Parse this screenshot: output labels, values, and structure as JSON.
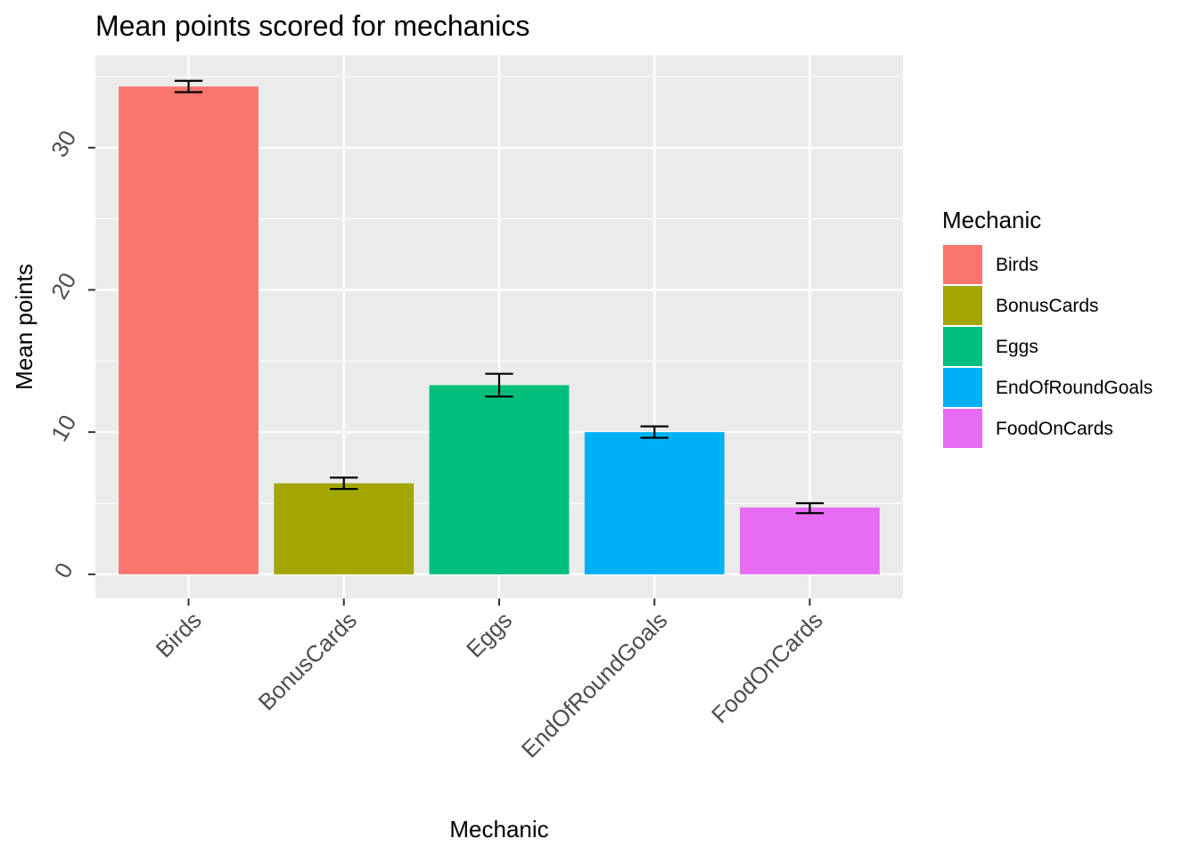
{
  "chart_data": {
    "type": "bar",
    "title": "Mean points scored for mechanics",
    "xlabel": "Mechanic",
    "ylabel": "Mean points",
    "categories": [
      "Birds",
      "BonusCards",
      "Eggs",
      "EndOfRoundGoals",
      "FoodOnCards"
    ],
    "values": [
      34.3,
      6.4,
      13.3,
      10.0,
      4.7
    ],
    "error_bars": [
      {
        "low": 33.9,
        "high": 34.7
      },
      {
        "low": 6.0,
        "high": 6.8
      },
      {
        "low": 12.5,
        "high": 14.1
      },
      {
        "low": 9.6,
        "high": 10.4
      },
      {
        "low": 4.3,
        "high": 5.0
      }
    ],
    "colors": [
      "#F8766D",
      "#A3A500",
      "#00BF7D",
      "#00B0F6",
      "#E76BF3"
    ],
    "ylim": [
      -1.7,
      36.5
    ],
    "yticks": [
      0,
      10,
      20,
      30
    ],
    "ytick_labels": [
      "0",
      "10",
      "20",
      "30"
    ],
    "grid": true,
    "background": "#EBEBEB",
    "grid_color": "#FFFFFF",
    "legend": {
      "title": "Mechanic",
      "position": "right",
      "entries": [
        "Birds",
        "BonusCards",
        "Eggs",
        "EndOfRoundGoals",
        "FoodOnCards"
      ]
    }
  }
}
